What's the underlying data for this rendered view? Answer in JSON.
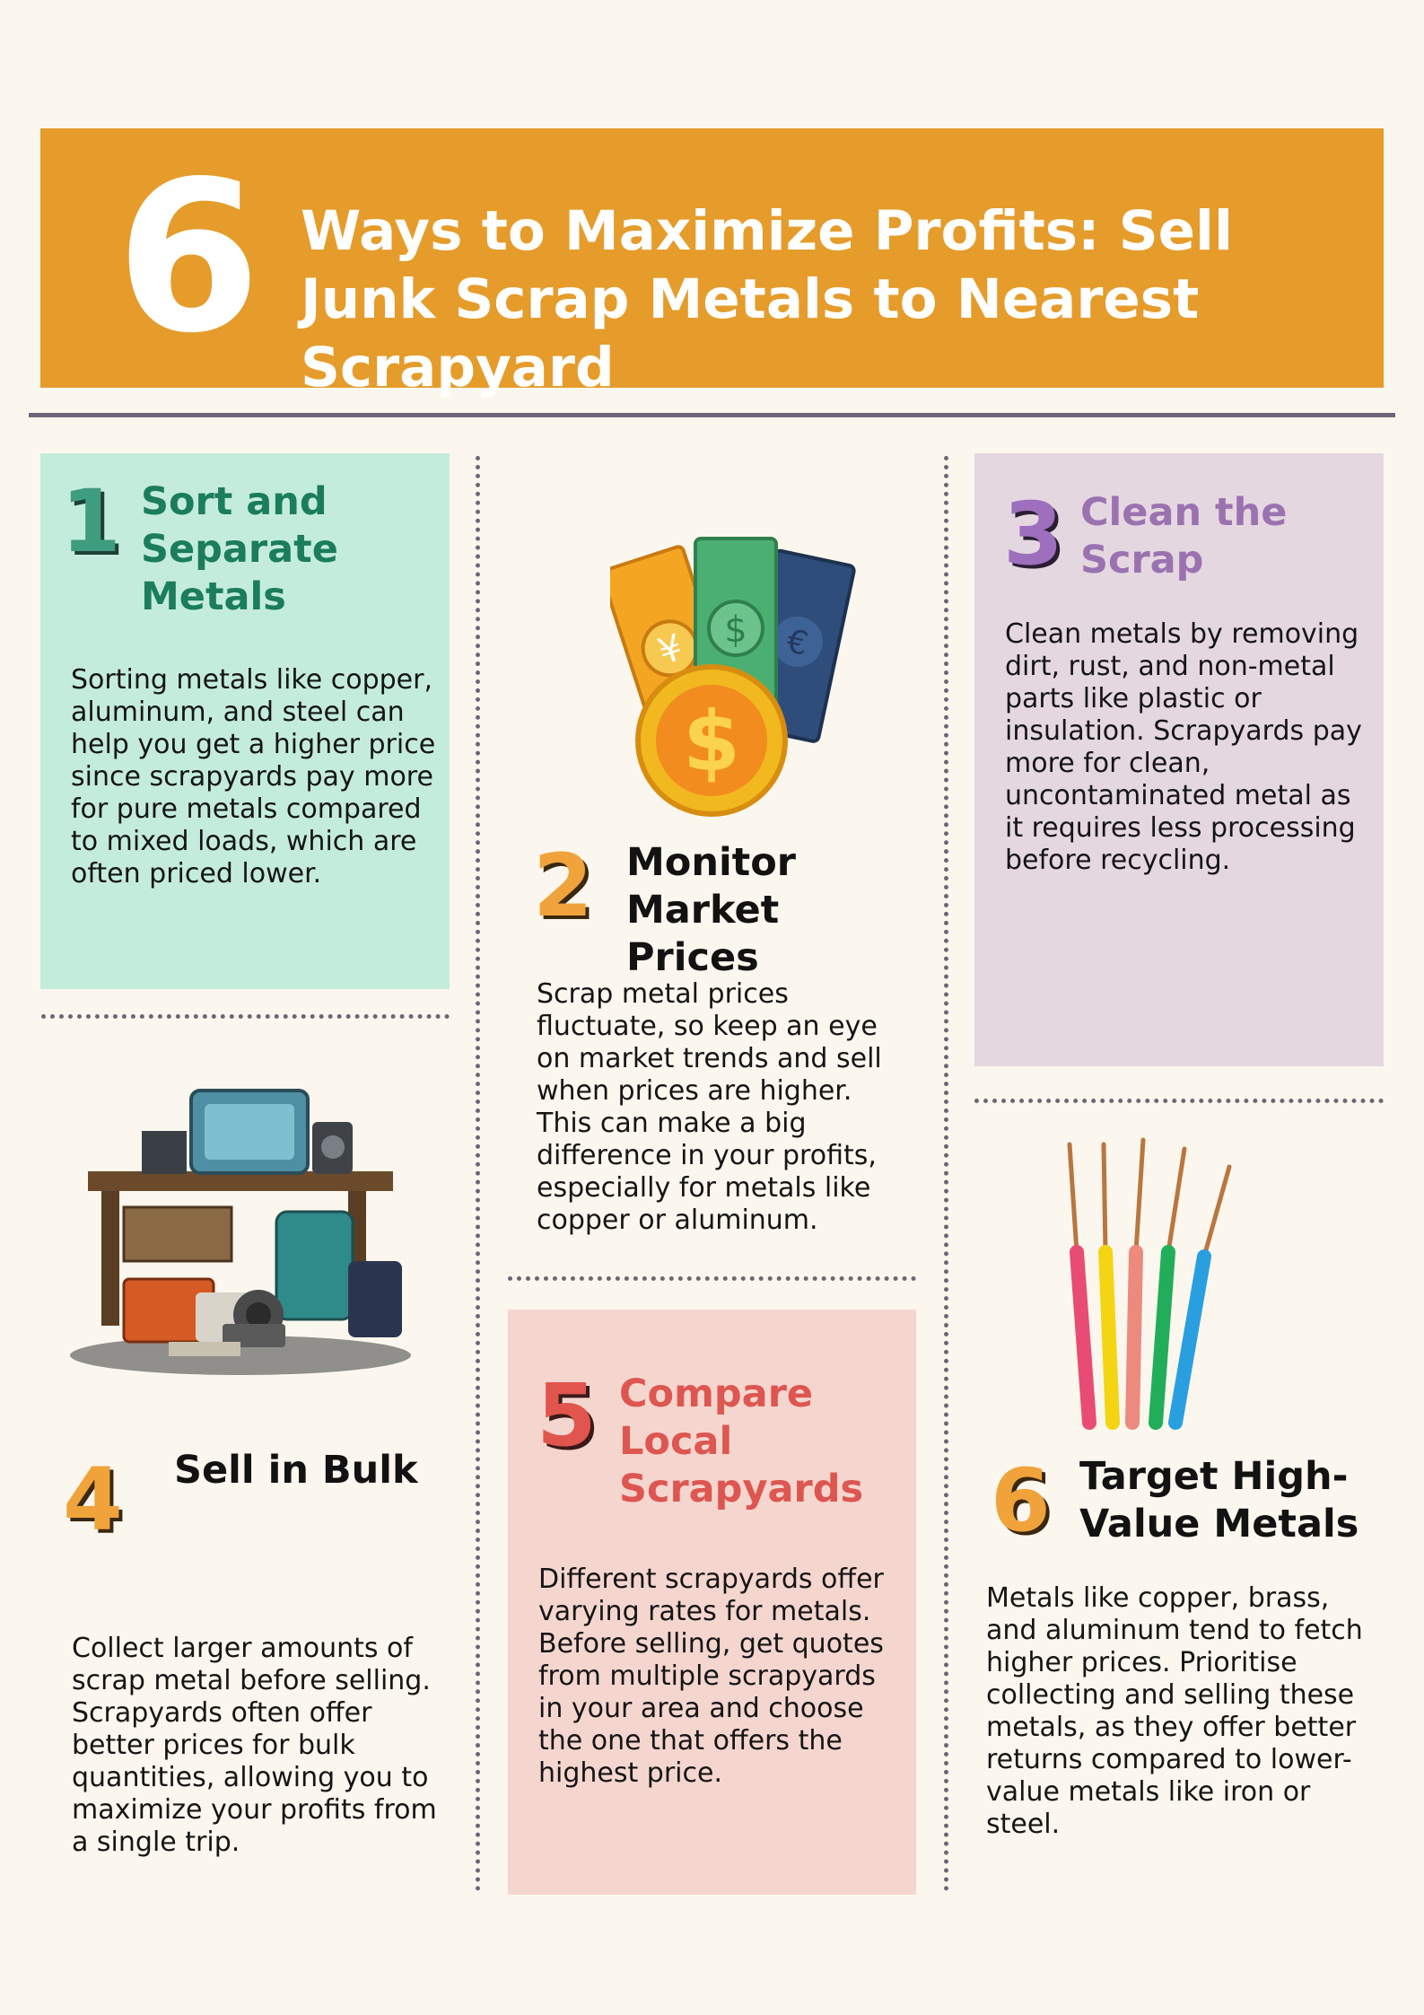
{
  "header": {
    "number": "6",
    "title": "Ways to Maximize Profits: Sell Junk Scrap Metals to Nearest Scrapyard"
  },
  "sections": [
    {
      "number": "1",
      "title": "Sort and Separate Metals",
      "body": "Sorting metals like copper, aluminum, and steel can help you get a higher price since scrapyards pay more for pure metals compared to mixed loads, which are often priced lower."
    },
    {
      "number": "2",
      "title": "Monitor Market Prices",
      "body": "Scrap metal prices fluctuate, so keep an eye on market trends and sell when prices are higher. This can make a big difference in your profits, especially for metals like copper or aluminum."
    },
    {
      "number": "3",
      "title": "Clean the Scrap",
      "body": "Clean metals by removing dirt, rust, and non-metal parts like plastic or insulation. Scrapyards pay more for clean, uncontaminated metal as it requires less processing before recycling."
    },
    {
      "number": "4",
      "title": "Sell in Bulk",
      "body": "Collect larger amounts of scrap metal before selling. Scrapyards often offer better prices for bulk quantities, allowing you to maximize your profits from a single trip."
    },
    {
      "number": "5",
      "title": "Compare Local Scrapyards",
      "body": "Different scrapyards offer varying rates for metals. Before selling, get quotes from multiple scrapyards in your area and choose the one that offers the highest price."
    },
    {
      "number": "6",
      "title": "Target High-Value Metals",
      "body": "Metals like copper, brass, and aluminum tend to fetch higher prices. Prioritise collecting and selling these metals, as they offer better returns compared to lower-value metals like iron or steel."
    }
  ],
  "colors": {
    "header_bg": "#e59c2b",
    "panel1_bg": "#c4ecdc",
    "panel3_bg": "#e5d7e0",
    "panel5_bg": "#f5d6cf",
    "page_bg": "#fbf7ee"
  },
  "illustrations": [
    "money-illustration",
    "scrap-pile-illustration",
    "colored-wires-illustration"
  ]
}
